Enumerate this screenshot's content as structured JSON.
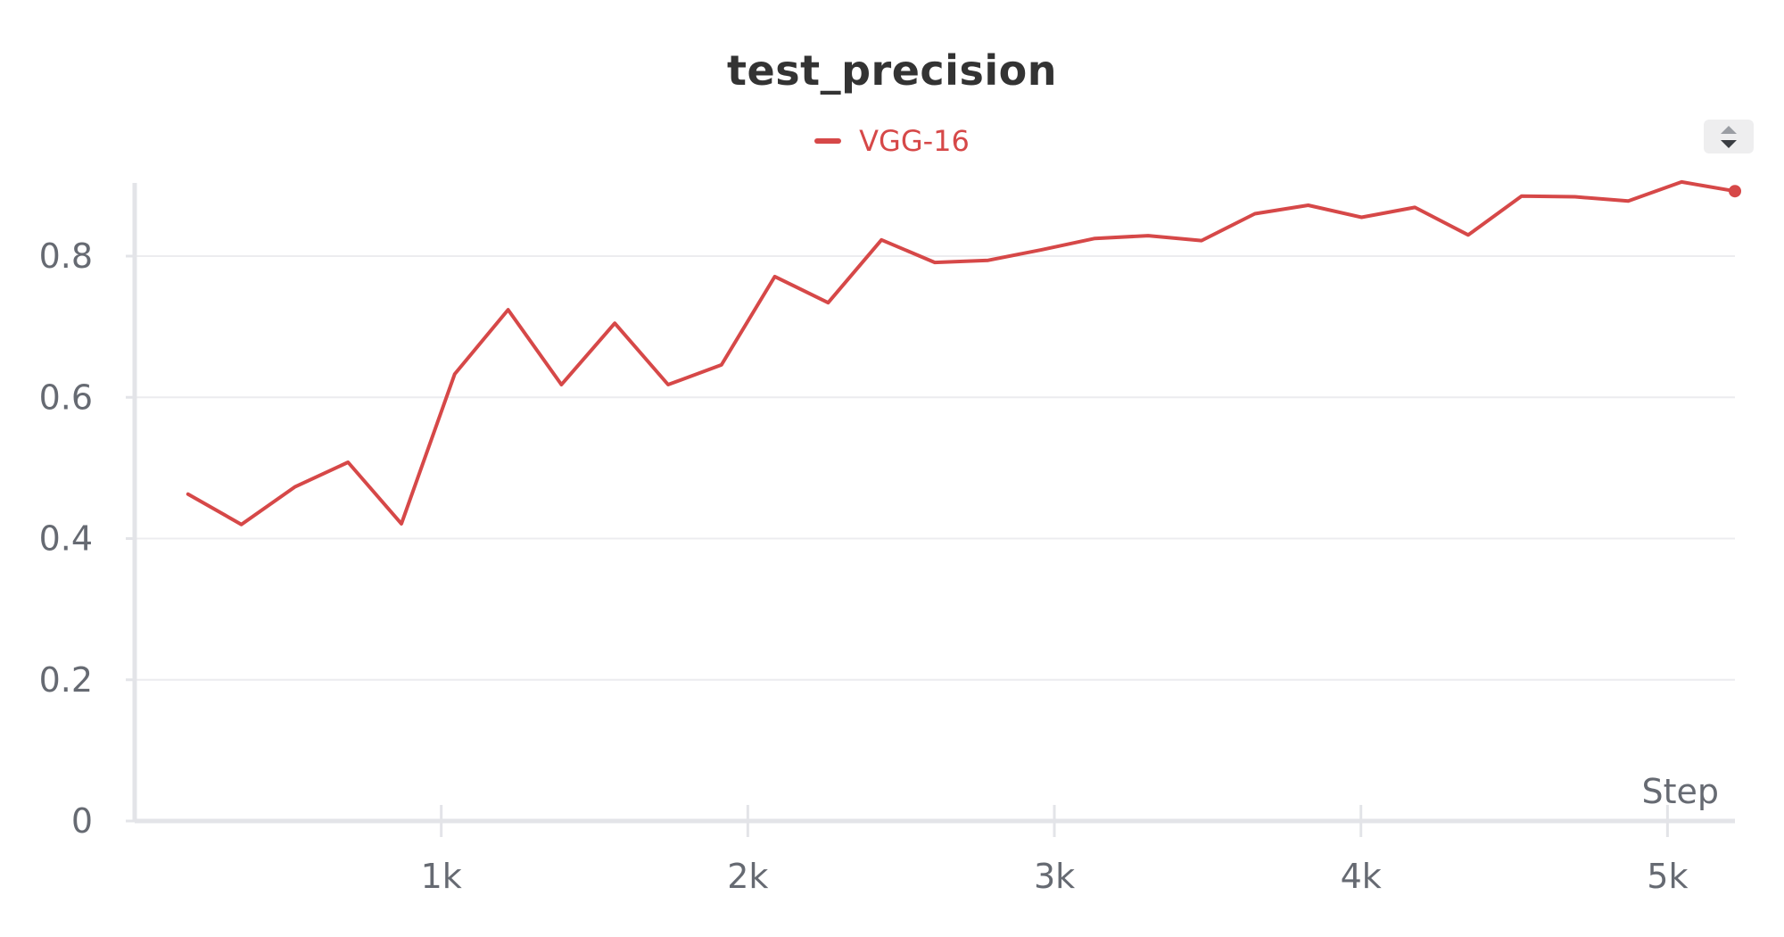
{
  "chart_data": {
    "type": "line",
    "title": "test_precision",
    "xlabel": "Step",
    "ylabel": "",
    "xlim": [
      0,
      5250
    ],
    "ylim": [
      0,
      0.92
    ],
    "x_ticks": [
      1000,
      2000,
      3000,
      4000,
      5000
    ],
    "x_tick_labels": [
      "1k",
      "2k",
      "3k",
      "4k",
      "5k"
    ],
    "y_ticks": [
      0,
      0.2,
      0.4,
      0.6,
      0.8
    ],
    "y_tick_labels": [
      "0",
      "0.2",
      "0.4",
      "0.6",
      "0.8"
    ],
    "grid": true,
    "legend_position": "top-center",
    "series": [
      {
        "name": "VGG-16",
        "color": "#d64848",
        "x": [
          174,
          348,
          522,
          696,
          870,
          1044,
          1218,
          1392,
          1566,
          1740,
          1914,
          2088,
          2262,
          2436,
          2610,
          2784,
          2958,
          3132,
          3306,
          3480,
          3654,
          3828,
          4002,
          4176,
          4350,
          4524,
          4698,
          4872,
          5046,
          5220
        ],
        "values": [
          0.463,
          0.42,
          0.473,
          0.508,
          0.421,
          0.633,
          0.724,
          0.618,
          0.705,
          0.618,
          0.646,
          0.771,
          0.734,
          0.823,
          0.791,
          0.794,
          0.809,
          0.825,
          0.829,
          0.822,
          0.86,
          0.872,
          0.855,
          0.869,
          0.83,
          0.885,
          0.884,
          0.878,
          0.905,
          0.892
        ]
      }
    ]
  }
}
